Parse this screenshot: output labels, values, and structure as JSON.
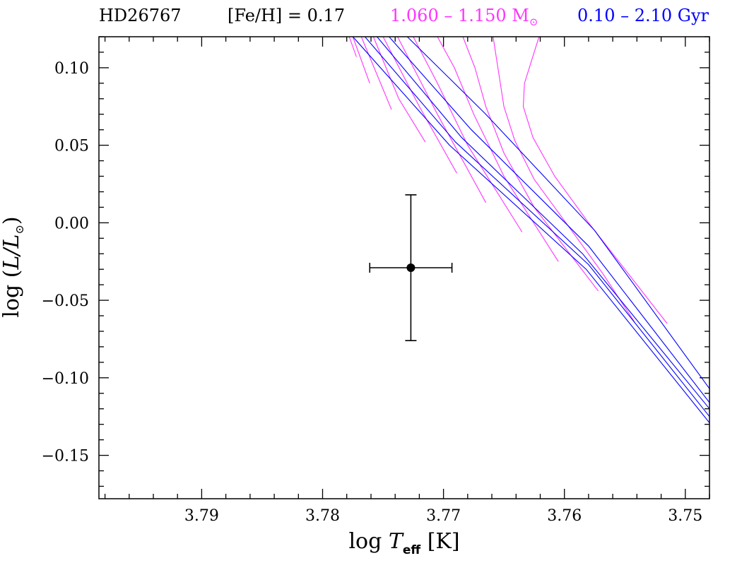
{
  "header": {
    "star": "HD26767",
    "feh_label": "[Fe/H] = 0.17",
    "mass_range": "1.060 – 1.150 M",
    "mass_sub": "⊙",
    "age_range": "0.10 – 2.10 Gyr"
  },
  "colors": {
    "mass_tracks": "#ff33ff",
    "isochrones": "#0000ff",
    "data_point": "#000000",
    "frame": "#000000",
    "header_mass_text": "#ff33ff",
    "header_age_text": "#0000ff"
  },
  "chart_data": {
    "type": "line",
    "title": "",
    "x_label_parts": {
      "pre": "log ",
      "italic": "T",
      "sub": "eff",
      "post": " [K]"
    },
    "y_label_parts": {
      "pre": "log (",
      "italic": "L/L",
      "sub": "⊙",
      "post": ")"
    },
    "xlim": [
      3.7985,
      3.748
    ],
    "ylim": [
      -0.178,
      0.12
    ],
    "xaxis_reversed": true,
    "x_ticks": [
      3.79,
      3.78,
      3.77,
      3.76,
      3.75
    ],
    "x_tick_labels": [
      "3.79",
      "3.78",
      "3.77",
      "3.76",
      "3.75"
    ],
    "y_ticks": [
      0.1,
      0.05,
      0.0,
      -0.05,
      -0.1,
      -0.15
    ],
    "y_tick_labels": [
      "0.10",
      "0.05",
      "0.00",
      "−0.05",
      "−0.10",
      "−0.15"
    ],
    "grid": false,
    "legend": "none",
    "observation": {
      "logTeff": 3.7727,
      "logL": -0.029,
      "logTeff_err": 0.0034,
      "logL_err": 0.047
    },
    "mass_tracks": [
      {
        "points": [
          [
            3.7778,
            0.12
          ],
          [
            3.7772,
            0.107
          ]
        ]
      },
      {
        "points": [
          [
            3.7775,
            0.12
          ],
          [
            3.7761,
            0.09
          ]
        ]
      },
      {
        "points": [
          [
            3.7768,
            0.12
          ],
          [
            3.7743,
            0.073
          ]
        ]
      },
      {
        "points": [
          [
            3.7758,
            0.12
          ],
          [
            3.7737,
            0.08
          ],
          [
            3.7715,
            0.052
          ]
        ]
      },
      {
        "points": [
          [
            3.775,
            0.12
          ],
          [
            3.772,
            0.075
          ],
          [
            3.7689,
            0.032
          ]
        ]
      },
      {
        "points": [
          [
            3.7738,
            0.12
          ],
          [
            3.7705,
            0.07
          ],
          [
            3.7665,
            0.013
          ]
        ]
      },
      {
        "points": [
          [
            3.7725,
            0.12
          ],
          [
            3.7705,
            0.09
          ],
          [
            3.768,
            0.05
          ],
          [
            3.7635,
            -0.006
          ]
        ]
      },
      {
        "points": [
          [
            3.7705,
            0.12
          ],
          [
            3.7691,
            0.1
          ],
          [
            3.7675,
            0.07
          ],
          [
            3.765,
            0.03
          ],
          [
            3.7605,
            -0.025
          ]
        ]
      },
      {
        "points": [
          [
            3.7684,
            0.12
          ],
          [
            3.7674,
            0.1
          ],
          [
            3.7665,
            0.075
          ],
          [
            3.765,
            0.045
          ],
          [
            3.7625,
            0.01
          ],
          [
            3.7572,
            -0.044
          ]
        ]
      },
      {
        "points": [
          [
            3.7659,
            0.12
          ],
          [
            3.7655,
            0.1
          ],
          [
            3.765,
            0.075
          ],
          [
            3.7641,
            0.053
          ],
          [
            3.7625,
            0.028
          ],
          [
            3.7595,
            -0.004
          ],
          [
            3.7568,
            -0.033
          ],
          [
            3.7542,
            -0.064
          ]
        ]
      },
      {
        "points": [
          [
            3.7621,
            0.12
          ],
          [
            3.7627,
            0.105
          ],
          [
            3.7633,
            0.09
          ],
          [
            3.7634,
            0.075
          ],
          [
            3.7626,
            0.055
          ],
          [
            3.7608,
            0.03
          ],
          [
            3.758,
            0.0
          ],
          [
            3.7545,
            -0.035
          ],
          [
            3.7515,
            -0.065
          ]
        ]
      }
    ],
    "isochrones": [
      {
        "points": [
          [
            3.7775,
            0.12
          ],
          [
            3.7695,
            0.05
          ],
          [
            3.7582,
            -0.03
          ],
          [
            3.748,
            -0.129
          ]
        ]
      },
      {
        "points": [
          [
            3.7765,
            0.12
          ],
          [
            3.769,
            0.052
          ],
          [
            3.758,
            -0.027
          ],
          [
            3.748,
            -0.125
          ]
        ]
      },
      {
        "points": [
          [
            3.7755,
            0.12
          ],
          [
            3.7685,
            0.055
          ],
          [
            3.7585,
            -0.02
          ],
          [
            3.748,
            -0.12
          ]
        ]
      },
      {
        "points": [
          [
            3.7745,
            0.12
          ],
          [
            3.7677,
            0.06
          ],
          [
            3.758,
            -0.015
          ],
          [
            3.748,
            -0.116
          ]
        ]
      },
      {
        "points": [
          [
            3.773,
            0.12
          ],
          [
            3.7665,
            0.07
          ],
          [
            3.7575,
            -0.005
          ],
          [
            3.748,
            -0.107
          ]
        ]
      }
    ]
  }
}
